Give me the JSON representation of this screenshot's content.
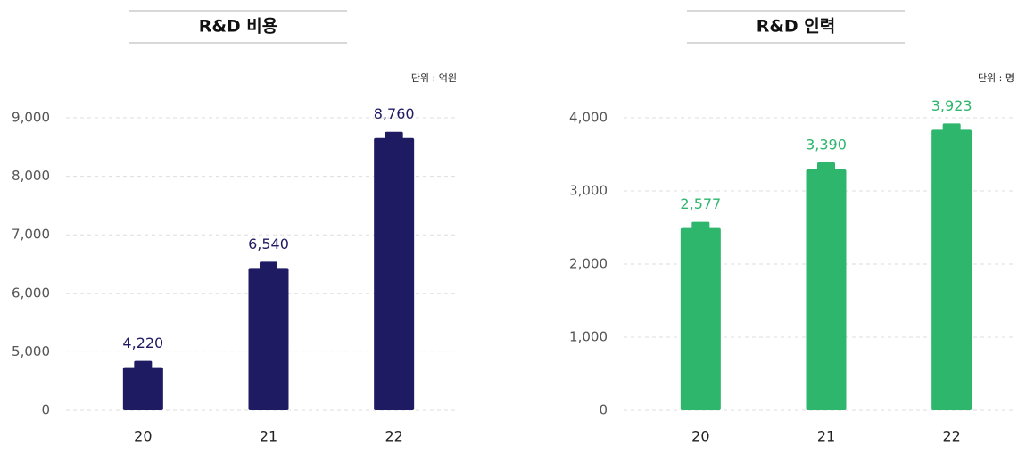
{
  "chart_data": [
    {
      "type": "bar",
      "title": "R&D 비용",
      "unit_label": "단위 : 억원",
      "categories": [
        "20",
        "21",
        "22"
      ],
      "values": [
        4220,
        6540,
        8760
      ],
      "value_labels": [
        "4,220",
        "6,540",
        "8,760"
      ],
      "color": "#1f1b63",
      "ylim": [
        0,
        9000
      ],
      "broken_axis": true,
      "yticks": [
        0,
        {
          "value": 5000,
          "label": "5,000"
        },
        {
          "value": 6000,
          "label": "6,000"
        },
        {
          "value": 7000,
          "label": "7,000"
        },
        {
          "value": 8000,
          "label": "8,000"
        },
        {
          "value": 9000,
          "label": "9,000"
        }
      ],
      "grid": true
    },
    {
      "type": "bar",
      "title": "R&D 인력",
      "unit_label": "단위 : 명",
      "categories": [
        "20",
        "21",
        "22"
      ],
      "values": [
        2577,
        3390,
        3923
      ],
      "value_labels": [
        "2,577",
        "3,390",
        "3,923"
      ],
      "color": "#2db66c",
      "ylim": [
        0,
        4000
      ],
      "broken_axis": false,
      "yticks": [
        0,
        {
          "value": 1000,
          "label": "1,000"
        },
        {
          "value": 2000,
          "label": "2,000"
        },
        {
          "value": 3000,
          "label": "3,000"
        },
        {
          "value": 4000,
          "label": "4,000"
        }
      ],
      "grid": true
    }
  ]
}
